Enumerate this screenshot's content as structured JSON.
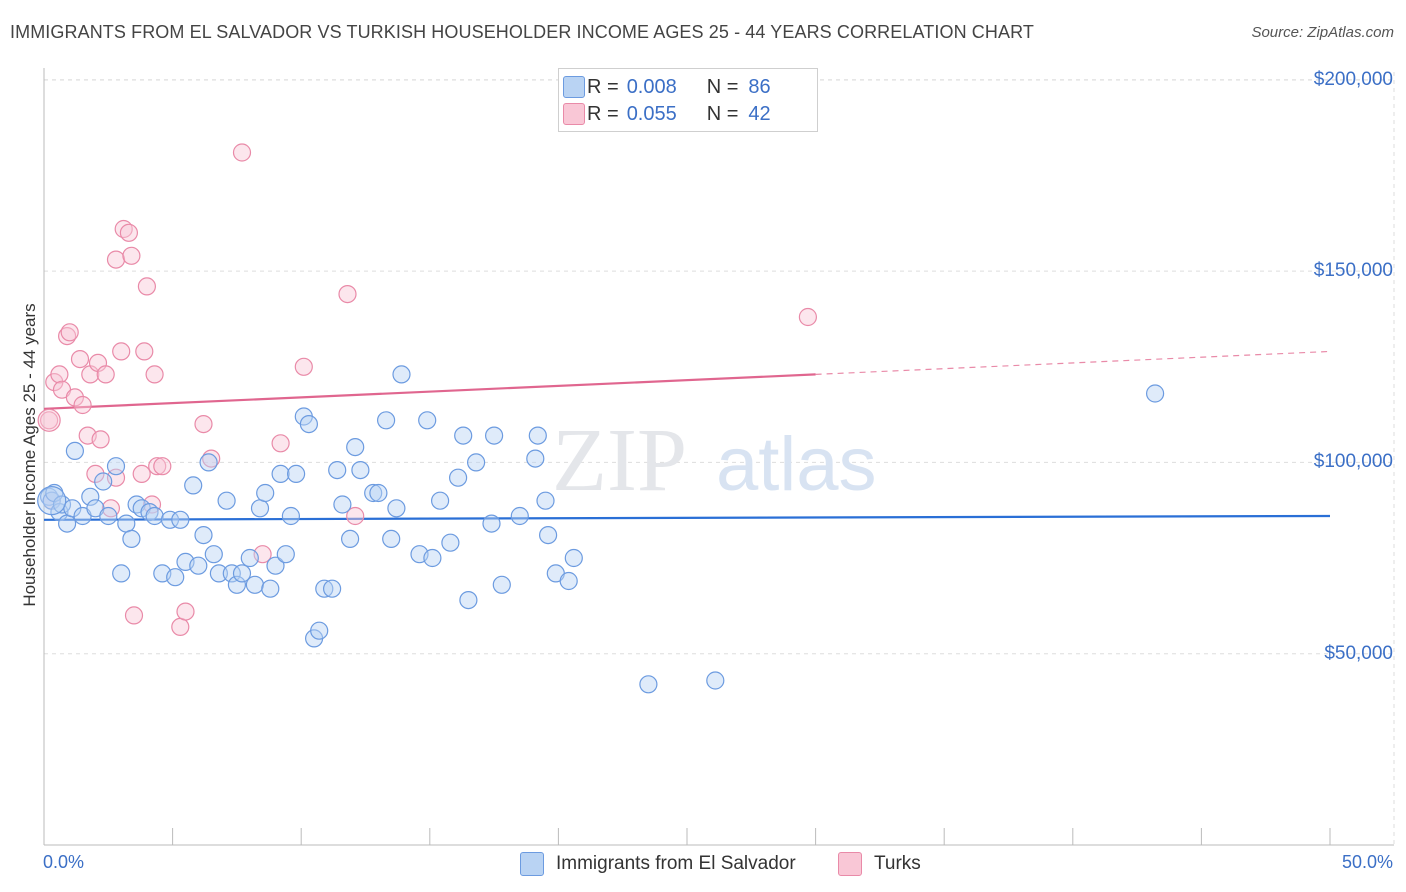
{
  "title": "IMMIGRANTS FROM EL SALVADOR VS TURKISH HOUSEHOLDER INCOME AGES 25 - 44 YEARS CORRELATION CHART",
  "source": "Source: ZipAtlas.com",
  "watermark": {
    "zip": "ZIP",
    "atlas": "atlas"
  },
  "legend_top": [
    {
      "r_label": "R =",
      "r_value": "0.008",
      "n_label": "N =",
      "n_value": "86",
      "color": "#6c9be0"
    },
    {
      "r_label": "R =",
      "r_value": "0.055",
      "n_label": "N =",
      "n_value": "42",
      "color": "#e98aa8"
    }
  ],
  "legend_bottom": [
    {
      "label": "Immigrants from El Salvador",
      "color": "#6c9be0"
    },
    {
      "label": "Turks",
      "color": "#e98aa8"
    }
  ],
  "chart_data": {
    "type": "scatter",
    "title": "IMMIGRANTS FROM EL SALVADOR VS TURKISH HOUSEHOLDER INCOME AGES 25 - 44 YEARS CORRELATION CHART",
    "xlabel": "",
    "ylabel": "Householder Income Ages 25 - 44 years",
    "xlim": [
      0,
      50
    ],
    "ylim": [
      0,
      210000
    ],
    "x_tick_labels": {
      "min": "0.0%",
      "max": "50.0%"
    },
    "y_ticks": [
      {
        "value": 50000,
        "label": "$50,000"
      },
      {
        "value": 100000,
        "label": "$100,000"
      },
      {
        "value": 150000,
        "label": "$150,000"
      },
      {
        "value": 200000,
        "label": "$200,000"
      }
    ],
    "grid": true,
    "series": [
      {
        "name": "Immigrants from El Salvador",
        "color": "#6c9be0",
        "trend": {
          "x0": 0,
          "y0": 85000,
          "x1": 50,
          "y1": 86000,
          "solid_to": 50
        },
        "points": [
          [
            0.2,
            91000
          ],
          [
            0.3,
            90000
          ],
          [
            0.4,
            92000
          ],
          [
            0.6,
            87000
          ],
          [
            0.7,
            89000
          ],
          [
            0.9,
            84000
          ],
          [
            1.1,
            88000
          ],
          [
            1.2,
            103000
          ],
          [
            1.5,
            86000
          ],
          [
            1.8,
            91000
          ],
          [
            2.0,
            88000
          ],
          [
            2.3,
            95000
          ],
          [
            2.5,
            86000
          ],
          [
            2.8,
            99000
          ],
          [
            3.0,
            71000
          ],
          [
            3.2,
            84000
          ],
          [
            3.4,
            80000
          ],
          [
            3.6,
            89000
          ],
          [
            3.8,
            88000
          ],
          [
            4.1,
            87000
          ],
          [
            4.3,
            86000
          ],
          [
            4.6,
            71000
          ],
          [
            4.9,
            85000
          ],
          [
            5.1,
            70000
          ],
          [
            5.3,
            85000
          ],
          [
            5.5,
            74000
          ],
          [
            5.8,
            94000
          ],
          [
            6.0,
            73000
          ],
          [
            6.2,
            81000
          ],
          [
            6.4,
            100000
          ],
          [
            6.6,
            76000
          ],
          [
            6.8,
            71000
          ],
          [
            7.1,
            90000
          ],
          [
            7.3,
            71000
          ],
          [
            7.5,
            68000
          ],
          [
            7.7,
            71000
          ],
          [
            8.0,
            75000
          ],
          [
            8.2,
            68000
          ],
          [
            8.4,
            88000
          ],
          [
            8.6,
            92000
          ],
          [
            8.8,
            67000
          ],
          [
            9.0,
            73000
          ],
          [
            9.2,
            97000
          ],
          [
            9.4,
            76000
          ],
          [
            9.6,
            86000
          ],
          [
            9.8,
            97000
          ],
          [
            10.1,
            112000
          ],
          [
            10.3,
            110000
          ],
          [
            10.5,
            54000
          ],
          [
            10.7,
            56000
          ],
          [
            10.9,
            67000
          ],
          [
            11.2,
            67000
          ],
          [
            11.4,
            98000
          ],
          [
            11.6,
            89000
          ],
          [
            11.9,
            80000
          ],
          [
            12.1,
            104000
          ],
          [
            12.3,
            98000
          ],
          [
            12.8,
            92000
          ],
          [
            13.0,
            92000
          ],
          [
            13.3,
            111000
          ],
          [
            13.5,
            80000
          ],
          [
            13.7,
            88000
          ],
          [
            13.9,
            123000
          ],
          [
            14.6,
            76000
          ],
          [
            14.9,
            111000
          ],
          [
            15.1,
            75000
          ],
          [
            15.4,
            90000
          ],
          [
            15.8,
            79000
          ],
          [
            16.1,
            96000
          ],
          [
            16.3,
            107000
          ],
          [
            16.5,
            64000
          ],
          [
            16.8,
            100000
          ],
          [
            17.4,
            84000
          ],
          [
            17.5,
            107000
          ],
          [
            17.8,
            68000
          ],
          [
            18.5,
            86000
          ],
          [
            19.1,
            101000
          ],
          [
            19.2,
            107000
          ],
          [
            19.5,
            90000
          ],
          [
            19.6,
            81000
          ],
          [
            19.9,
            71000
          ],
          [
            20.4,
            69000
          ],
          [
            20.6,
            75000
          ],
          [
            23.5,
            42000
          ],
          [
            26.1,
            43000
          ],
          [
            43.2,
            118000
          ]
        ]
      },
      {
        "name": "Turks",
        "color": "#e98aa8",
        "trend": {
          "x0": 0,
          "y0": 114000,
          "x1": 50,
          "y1": 129000,
          "solid_to": 30
        },
        "points": [
          [
            0.2,
            111000
          ],
          [
            0.3,
            90000
          ],
          [
            0.4,
            121000
          ],
          [
            0.6,
            123000
          ],
          [
            0.7,
            119000
          ],
          [
            0.9,
            133000
          ],
          [
            1.0,
            134000
          ],
          [
            1.2,
            117000
          ],
          [
            1.4,
            127000
          ],
          [
            1.5,
            115000
          ],
          [
            1.7,
            107000
          ],
          [
            1.8,
            123000
          ],
          [
            2.0,
            97000
          ],
          [
            2.1,
            126000
          ],
          [
            2.2,
            106000
          ],
          [
            2.4,
            123000
          ],
          [
            2.6,
            88000
          ],
          [
            2.8,
            96000
          ],
          [
            2.8,
            153000
          ],
          [
            3.0,
            129000
          ],
          [
            3.1,
            161000
          ],
          [
            3.3,
            160000
          ],
          [
            3.4,
            154000
          ],
          [
            3.5,
            60000
          ],
          [
            3.8,
            97000
          ],
          [
            3.9,
            129000
          ],
          [
            4.0,
            146000
          ],
          [
            4.2,
            89000
          ],
          [
            4.3,
            123000
          ],
          [
            4.4,
            99000
          ],
          [
            4.6,
            99000
          ],
          [
            5.3,
            57000
          ],
          [
            5.5,
            61000
          ],
          [
            6.2,
            110000
          ],
          [
            6.5,
            101000
          ],
          [
            7.7,
            181000
          ],
          [
            8.5,
            76000
          ],
          [
            9.2,
            105000
          ],
          [
            10.1,
            125000
          ],
          [
            11.8,
            144000
          ],
          [
            12.1,
            86000
          ],
          [
            29.7,
            138000
          ]
        ]
      }
    ]
  }
}
